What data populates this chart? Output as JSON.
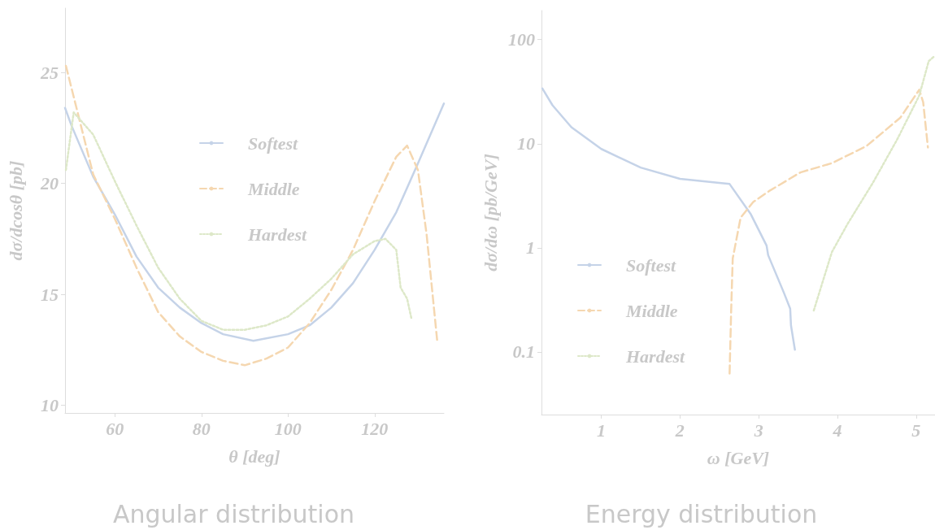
{
  "chart_data": [
    {
      "type": "line",
      "title": "Angular distribution",
      "xlabel": "θ [deg]",
      "ylabel": "dσ/dcosθ [pb]",
      "xlim": [
        48.5,
        136
      ],
      "xticks": [
        60,
        80,
        100,
        120
      ],
      "ylim": [
        9.65,
        27.9
      ],
      "yticks": [
        10,
        15,
        20,
        25
      ],
      "grid": false,
      "legend": "top",
      "marker": "none",
      "series": [
        {
          "name": "Softest",
          "color": "#c5d3e8",
          "line_style": "solid",
          "x": [
            48.5,
            50,
            55,
            60,
            65,
            70,
            75,
            80,
            85,
            92,
            100,
            105,
            110,
            115,
            120,
            125,
            130,
            136
          ],
          "values": [
            23.4,
            22.6,
            20.3,
            18.6,
            16.7,
            15.3,
            14.4,
            13.7,
            13.2,
            12.9,
            13.2,
            13.6,
            14.4,
            15.5,
            17.0,
            18.7,
            20.9,
            23.6
          ]
        },
        {
          "name": "Middle",
          "color": "#f5d7b0",
          "line_style": "dashed",
          "x": [
            48.7,
            55,
            60,
            65,
            70,
            75,
            80,
            85,
            90,
            95,
            100,
            105,
            110,
            115,
            120,
            125,
            127.5,
            130,
            132,
            134.5
          ],
          "values": [
            25.3,
            20.4,
            18.4,
            16.2,
            14.2,
            13.1,
            12.4,
            12.0,
            11.8,
            12.1,
            12.6,
            13.7,
            15.2,
            17.0,
            19.2,
            21.2,
            21.7,
            20.6,
            17.7,
            12.8
          ]
        },
        {
          "name": "Hardest",
          "color": "#dde8c8",
          "line_style": "dotted",
          "x": [
            48.7,
            50.5,
            55,
            60,
            65,
            70,
            75,
            80,
            85,
            90,
            95,
            100,
            105,
            110,
            115,
            120,
            122.5,
            125,
            126,
            127.5,
            128.5
          ],
          "values": [
            20.6,
            23.2,
            22.2,
            20.1,
            18.1,
            16.2,
            14.8,
            13.8,
            13.4,
            13.4,
            13.6,
            14.0,
            14.8,
            15.7,
            16.8,
            17.4,
            17.5,
            17.0,
            15.3,
            14.8,
            13.9
          ]
        }
      ]
    },
    {
      "type": "line",
      "title": "Energy distribution",
      "xlabel": "ω [GeV]",
      "ylabel": "dσ/dω [pb/GeV]",
      "xlim": [
        0.24,
        5.24
      ],
      "xticks": [
        1,
        2,
        3,
        4,
        5
      ],
      "ylim": [
        0.025,
        190
      ],
      "yticks": [
        0.1,
        1,
        10,
        100
      ],
      "log": "y",
      "grid": false,
      "legend": "bottom left",
      "marker": "none",
      "series": [
        {
          "name": "Softest",
          "color": "#c5d3e8",
          "line_style": "solid",
          "x": [
            0.25,
            0.38,
            0.62,
            1,
            1.5,
            2,
            2.5,
            2.63,
            2.9,
            3.1,
            3.12,
            3.32,
            3.4,
            3.41,
            3.46
          ],
          "values": [
            34,
            23.4,
            14.4,
            8.9,
            5.9,
            4.6,
            4.2,
            4.1,
            2.1,
            1.05,
            0.85,
            0.37,
            0.26,
            0.18,
            0.105
          ]
        },
        {
          "name": "Middle",
          "color": "#f5d7b0",
          "line_style": "dashed",
          "x": [
            2.63,
            2.65,
            2.67,
            2.77,
            2.93,
            3.13,
            3.53,
            3.93,
            4.37,
            4.8,
            5.04,
            5.09,
            5.15
          ],
          "values": [
            0.062,
            0.25,
            0.79,
            1.95,
            2.75,
            3.5,
            5.3,
            6.5,
            9.5,
            17.8,
            33,
            25,
            9.2
          ]
        },
        {
          "name": "Hardest",
          "color": "#dde8c8",
          "line_style": "dotted",
          "x": [
            3.7,
            3.87,
            3.93,
            4.13,
            4.45,
            4.76,
            5.04,
            5.16,
            5.22
          ],
          "values": [
            0.25,
            0.65,
            0.91,
            1.7,
            4.2,
            11,
            29,
            62,
            68
          ]
        }
      ]
    }
  ]
}
